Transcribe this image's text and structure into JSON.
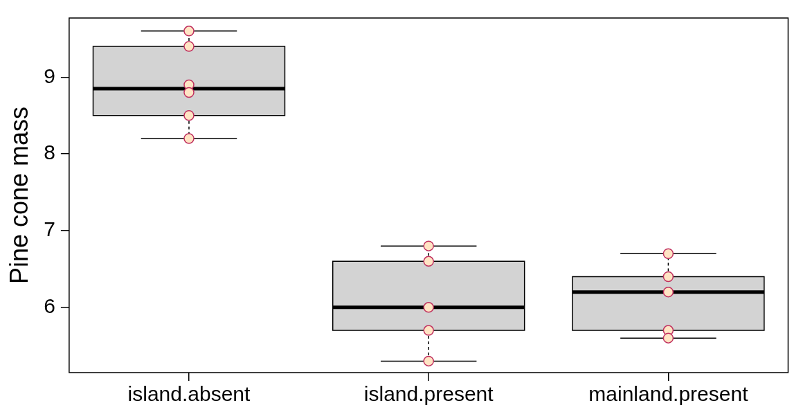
{
  "chart_data": {
    "type": "box",
    "ylabel": "Pine cone mass",
    "categories": [
      "island.absent",
      "island.present",
      "mainland.present"
    ],
    "boxes": [
      {
        "low": 8.2,
        "q1": 8.5,
        "median": 8.85,
        "q3": 9.4,
        "high": 9.6
      },
      {
        "low": 5.3,
        "q1": 5.7,
        "median": 6.0,
        "q3": 6.6,
        "high": 6.8
      },
      {
        "low": 5.6,
        "q1": 5.7,
        "median": 6.2,
        "q3": 6.4,
        "high": 6.7
      }
    ],
    "color": "#d3d3d3",
    "series": [
      {
        "type": "scatter",
        "color": "#ffe4c4",
        "x": [
          "island.absent",
          "island.absent",
          "island.absent",
          "island.absent",
          "island.absent",
          "island.absent",
          "island.present",
          "island.present",
          "island.present",
          "island.present",
          "island.present",
          "mainland.present",
          "mainland.present",
          "mainland.present",
          "mainland.present",
          "mainland.present"
        ],
        "values": [
          9.6,
          9.4,
          8.9,
          8.8,
          8.5,
          8.2,
          6.8,
          6.6,
          6.0,
          5.7,
          5.3,
          6.7,
          6.4,
          6.2,
          5.7,
          5.6
        ]
      }
    ],
    "marker": "circle",
    "ylim": [
      5.15,
      9.77
    ],
    "yticks": [
      6,
      7,
      8,
      9
    ],
    "grid": false,
    "legend": false
  }
}
